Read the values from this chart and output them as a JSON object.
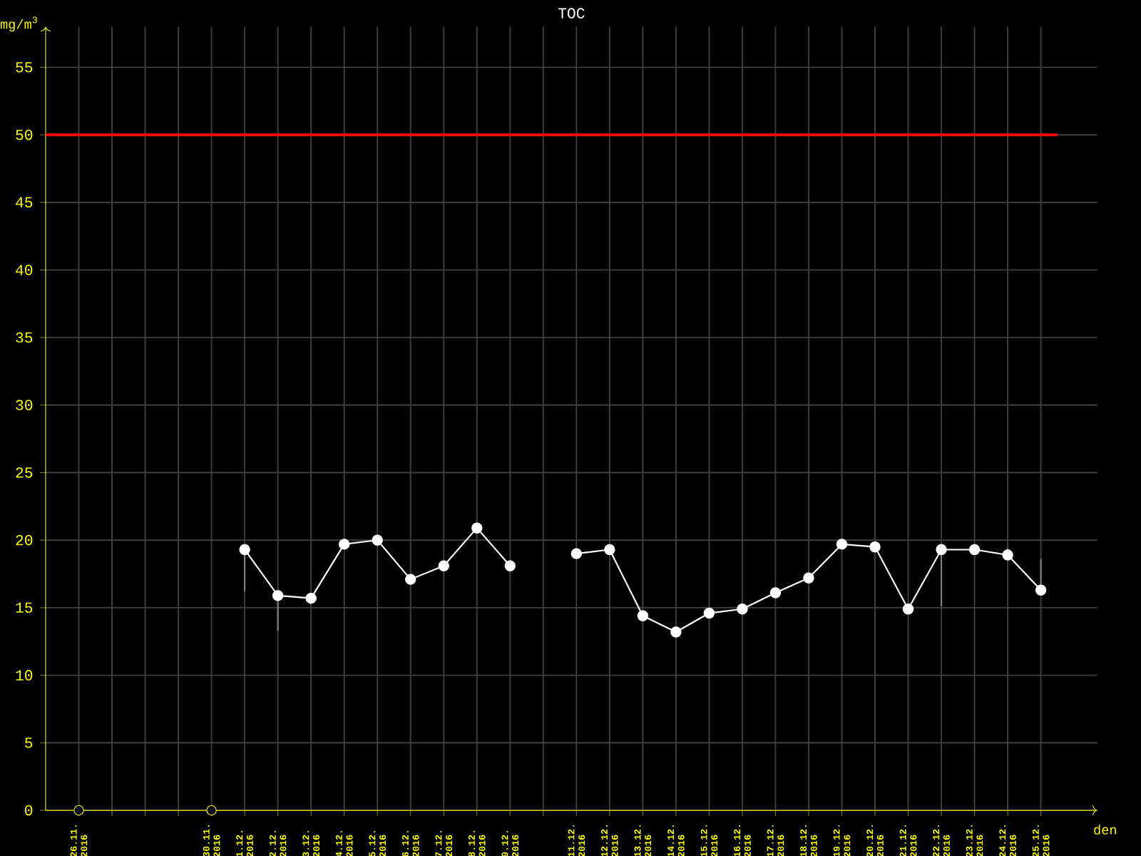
{
  "chart_data": {
    "type": "line",
    "title": "TOC",
    "ylabel": "mg/m$^{3}$",
    "xlabel": "den",
    "categories": [
      "26.11. 2016",
      null,
      null,
      null,
      "30.11. 2016",
      "1.12. 2016",
      "2.12. 2016",
      "3.12. 2016",
      "4.12. 2016",
      "5.12. 2016",
      "6.12. 2016",
      "7.12. 2016",
      "8.12. 2016",
      "9.12. 2016",
      null,
      "11.12. 2016",
      "12.12. 2016",
      "13.12. 2016",
      "14.12. 2016",
      "15.12. 2016",
      "16.12. 2016",
      "17.12. 2016",
      "18.12. 2016",
      "19.12. 2016",
      "20.12. 2016",
      "21.12. 2016",
      "22.12. 2016",
      "23.12. 2016",
      "24.12. 2016",
      "25.12. 2016"
    ],
    "series": [
      {
        "color": "#ffffff",
        "values": [
          null,
          null,
          null,
          null,
          null,
          19.3,
          15.9,
          15.7,
          19.7,
          20.0,
          17.1,
          18.1,
          20.9,
          18.1,
          null,
          19.0,
          19.3,
          14.4,
          13.2,
          14.6,
          14.9,
          16.1,
          17.2,
          19.7,
          19.5,
          14.9,
          19.3,
          19.3,
          18.9,
          16.3
        ],
        "errors": [
          null,
          null,
          null,
          null,
          null,
          [
            16.2,
            19.3
          ],
          [
            13.3,
            15.9
          ],
          null,
          null,
          null,
          null,
          null,
          null,
          null,
          null,
          null,
          null,
          null,
          null,
          null,
          null,
          null,
          null,
          null,
          null,
          null,
          [
            15.1,
            19.3
          ],
          [
            18.9,
            19.3
          ],
          [
            18.9,
            19.4
          ],
          [
            16.3,
            18.6
          ]
        ]
      },
      {
        "type": "scatter",
        "color": "#ffff00",
        "values": [
          0,
          null,
          null,
          null,
          0,
          null,
          null,
          null,
          null,
          null,
          null,
          null,
          null,
          null,
          null,
          null,
          null,
          null,
          null,
          null,
          null,
          null,
          null,
          null,
          null,
          null,
          null,
          null,
          null,
          null
        ]
      }
    ],
    "ylim": [
      0,
      58
    ],
    "yticks": [
      0,
      5,
      10,
      15,
      20,
      25,
      30,
      35,
      40,
      45,
      50,
      55
    ],
    "ref_lines": [
      {
        "axis": "y",
        "value": 50,
        "color": "#ff0000"
      }
    ],
    "grid": true,
    "marker": "circle"
  }
}
